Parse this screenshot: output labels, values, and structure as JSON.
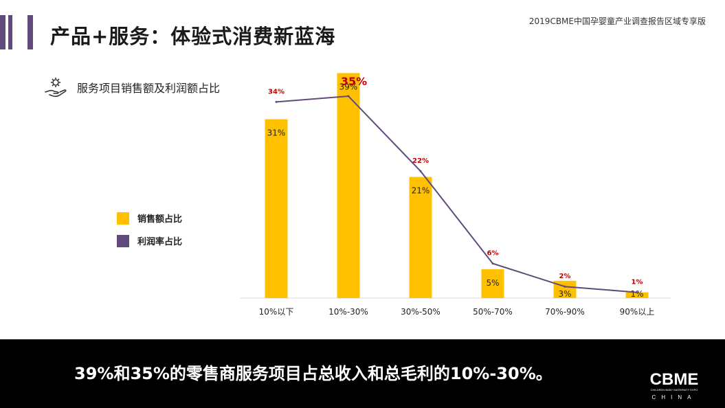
{
  "header": {
    "title": "产品+服务：体验式消费新蓝海",
    "report_name": "2019CBME中国孕婴童产业调查报告区域专享版"
  },
  "subtitle": {
    "text": "服务项目销售额及利润额占比",
    "icon": "gear-hand-icon"
  },
  "legend": [
    {
      "label": "销售额占比",
      "color": "#ffc000"
    },
    {
      "label": "利润率占比",
      "color": "#5f4a7b"
    }
  ],
  "chart_data": {
    "type": "bar",
    "categories": [
      "10%以下",
      "10%-30%",
      "30%-50%",
      "50%-70%",
      "70%-90%",
      "90%以上"
    ],
    "series": [
      {
        "name": "销售额占比",
        "type": "bar",
        "color": "#ffc000",
        "values": [
          31,
          39,
          21,
          5,
          3,
          1
        ],
        "labels": [
          "31%",
          "39%",
          "21%",
          "5%",
          "3%",
          "1%"
        ]
      },
      {
        "name": "利润率占比",
        "type": "line",
        "color": "#5f4a7b",
        "values": [
          34,
          35,
          22,
          6,
          2,
          1
        ],
        "labels": [
          "34%",
          "35%",
          "22%",
          "6%",
          "2%",
          "1%"
        ],
        "label_color": "#c00000"
      }
    ],
    "ylim": [
      0,
      40
    ]
  },
  "footer": {
    "summary": "39%和35%的零售商服务项目占总收入和总毛利的10%-30%。",
    "logo_text": "CBME",
    "logo_tagline": "CHILDREN·BABY·MATERNITY EXPO",
    "logo_sub": "CHINA"
  }
}
